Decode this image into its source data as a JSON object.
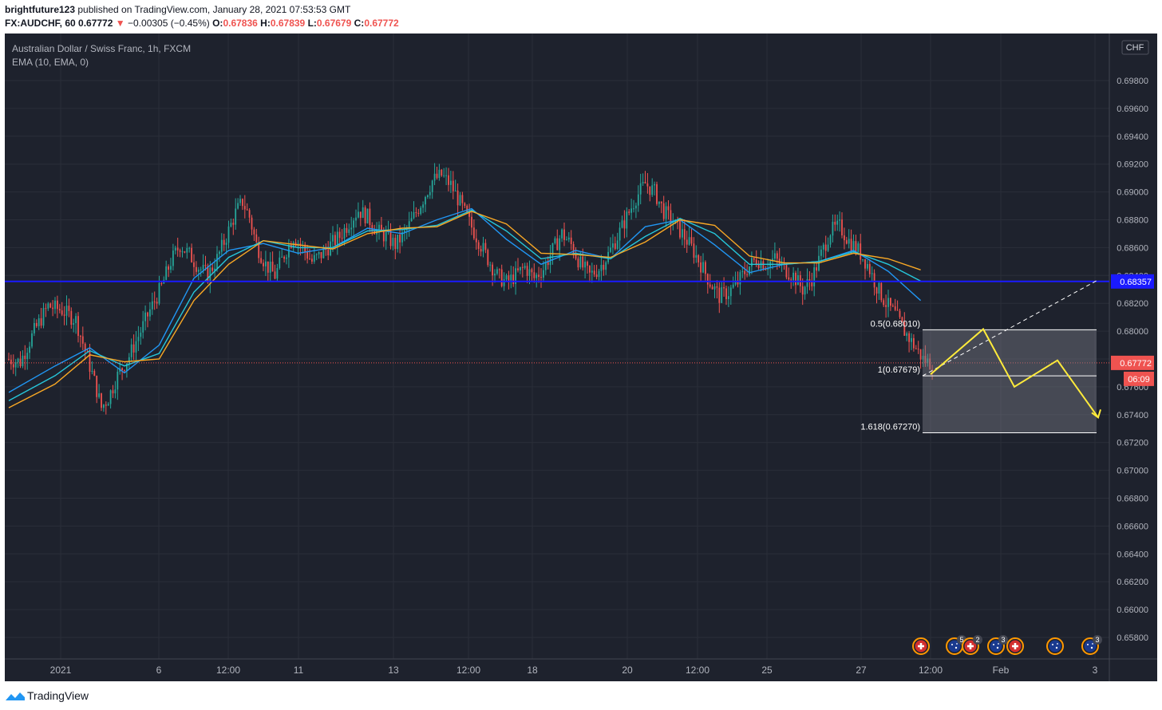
{
  "header": {
    "author": "brightfuture123",
    "published": " published on TradingView.com, January 28, 2021 07:53:53 GMT",
    "symbol": "FX:AUDCHF, 60",
    "last": "0.67772",
    "change_arrow": "▼",
    "change": "−0.00305 (−0.45%)",
    "o_label": "O:",
    "o_val": "0.67836",
    "h_label": "H:",
    "h_val": "0.67839",
    "l_label": "L:",
    "l_val": "0.67679",
    "c_label": "C:",
    "c_val": "0.67772"
  },
  "legend": {
    "title": "Australian Dollar / Swiss Franc, 1h, FXCM",
    "indicator": "EMA (10, EMA, 0)",
    "currency": "CHF"
  },
  "footer": {
    "brand": "TradingView"
  },
  "colors": {
    "background": "#1e222d",
    "up": "#26a69a",
    "down": "#ef5350",
    "ema_fast": "#2196f3",
    "ema_mid": "#26c6da",
    "ema_slow": "#f9a825",
    "support_line": "#1a1aff",
    "projection": "#ffeb3b",
    "current_price": "#ef5350"
  },
  "chart_data": {
    "type": "candlestick",
    "title": "Australian Dollar / Swiss Franc, 1h, FXCM",
    "y_ticks": [
      "0.69800",
      "0.69600",
      "0.69400",
      "0.69200",
      "0.69000",
      "0.68800",
      "0.68600",
      "0.68400",
      "0.68200",
      "0.68000",
      "0.67800",
      "0.67600",
      "0.67400",
      "0.67200",
      "0.67000",
      "0.66800",
      "0.66600",
      "0.66400",
      "0.66200",
      "0.66000",
      "0.65800"
    ],
    "ylim": [
      0.657,
      0.7
    ],
    "x_ticks": [
      "2021",
      "6",
      "12:00",
      "11",
      "13",
      "12:00",
      "18",
      "20",
      "12:00",
      "25",
      "27",
      "12:00",
      "Feb",
      "3"
    ],
    "price_path": [
      [
        0,
        0.678
      ],
      [
        6,
        0.6778
      ],
      [
        12,
        0.68
      ],
      [
        18,
        0.6818
      ],
      [
        24,
        0.6815
      ],
      [
        30,
        0.6808
      ],
      [
        34,
        0.6786
      ],
      [
        38,
        0.6764
      ],
      [
        41,
        0.6745
      ],
      [
        44,
        0.6752
      ],
      [
        48,
        0.6768
      ],
      [
        53,
        0.6782
      ],
      [
        58,
        0.68
      ],
      [
        62,
        0.6815
      ],
      [
        67,
        0.6832
      ],
      [
        71,
        0.685
      ],
      [
        75,
        0.6862
      ],
      [
        79,
        0.6855
      ],
      [
        83,
        0.6846
      ],
      [
        87,
        0.684
      ],
      [
        91,
        0.6852
      ],
      [
        95,
        0.6868
      ],
      [
        99,
        0.6885
      ],
      [
        102,
        0.6893
      ],
      [
        105,
        0.6882
      ],
      [
        108,
        0.6862
      ],
      [
        112,
        0.6848
      ],
      [
        116,
        0.684
      ],
      [
        120,
        0.6855
      ],
      [
        124,
        0.6868
      ],
      [
        128,
        0.686
      ],
      [
        132,
        0.685
      ],
      [
        136,
        0.6855
      ],
      [
        140,
        0.6862
      ],
      [
        144,
        0.6868
      ],
      [
        148,
        0.6878
      ],
      [
        152,
        0.6887
      ],
      [
        156,
        0.6882
      ],
      [
        160,
        0.6872
      ],
      [
        164,
        0.6868
      ],
      [
        168,
        0.6862
      ],
      [
        172,
        0.687
      ],
      [
        176,
        0.6882
      ],
      [
        180,
        0.6895
      ],
      [
        184,
        0.6908
      ],
      [
        188,
        0.6912
      ],
      [
        192,
        0.6905
      ],
      [
        196,
        0.6892
      ],
      [
        200,
        0.6878
      ],
      [
        204,
        0.6865
      ],
      [
        208,
        0.6852
      ],
      [
        212,
        0.684
      ],
      [
        216,
        0.6835
      ],
      [
        220,
        0.684
      ],
      [
        224,
        0.6846
      ],
      [
        228,
        0.6838
      ],
      [
        232,
        0.6845
      ],
      [
        236,
        0.6858
      ],
      [
        240,
        0.687
      ],
      [
        244,
        0.6862
      ],
      [
        248,
        0.6848
      ],
      [
        252,
        0.684
      ],
      [
        256,
        0.6845
      ],
      [
        260,
        0.6855
      ],
      [
        264,
        0.6868
      ],
      [
        268,
        0.6882
      ],
      [
        272,
        0.6896
      ],
      [
        276,
        0.6906
      ],
      [
        280,
        0.69
      ],
      [
        284,
        0.6886
      ],
      [
        288,
        0.6878
      ],
      [
        292,
        0.687
      ],
      [
        296,
        0.686
      ],
      [
        300,
        0.6848
      ],
      [
        304,
        0.6835
      ],
      [
        308,
        0.6825
      ],
      [
        312,
        0.6828
      ],
      [
        316,
        0.6835
      ],
      [
        320,
        0.6845
      ],
      [
        324,
        0.6852
      ],
      [
        328,
        0.6848
      ],
      [
        332,
        0.6852
      ],
      [
        336,
        0.6845
      ],
      [
        340,
        0.684
      ],
      [
        344,
        0.683
      ],
      [
        348,
        0.6838
      ],
      [
        352,
        0.6855
      ],
      [
        356,
        0.6872
      ],
      [
        360,
        0.6875
      ],
      [
        364,
        0.6865
      ],
      [
        368,
        0.6858
      ],
      [
        372,
        0.6848
      ],
      [
        376,
        0.6832
      ],
      [
        380,
        0.682
      ],
      [
        384,
        0.6812
      ],
      [
        388,
        0.68
      ],
      [
        392,
        0.679
      ],
      [
        396,
        0.678
      ],
      [
        399,
        0.6777
      ]
    ],
    "ema_lines": [
      {
        "name": "ema_fast",
        "pts": [
          [
            0,
            0.6756
          ],
          [
            20,
            0.6775
          ],
          [
            35,
            0.6788
          ],
          [
            50,
            0.677
          ],
          [
            65,
            0.679
          ],
          [
            80,
            0.6838
          ],
          [
            95,
            0.6858
          ],
          [
            110,
            0.6863
          ],
          [
            125,
            0.6856
          ],
          [
            140,
            0.686
          ],
          [
            155,
            0.6874
          ],
          [
            170,
            0.687
          ],
          [
            185,
            0.688
          ],
          [
            200,
            0.6888
          ],
          [
            215,
            0.6866
          ],
          [
            230,
            0.6848
          ],
          [
            245,
            0.6858
          ],
          [
            260,
            0.6852
          ],
          [
            275,
            0.6875
          ],
          [
            290,
            0.688
          ],
          [
            305,
            0.6862
          ],
          [
            320,
            0.6842
          ],
          [
            335,
            0.6848
          ],
          [
            350,
            0.685
          ],
          [
            365,
            0.6858
          ],
          [
            380,
            0.6843
          ],
          [
            394,
            0.6822
          ]
        ]
      },
      {
        "name": "ema_mid",
        "pts": [
          [
            0,
            0.675
          ],
          [
            20,
            0.6768
          ],
          [
            35,
            0.6786
          ],
          [
            50,
            0.6775
          ],
          [
            65,
            0.6784
          ],
          [
            80,
            0.6828
          ],
          [
            95,
            0.6853
          ],
          [
            110,
            0.6865
          ],
          [
            125,
            0.686
          ],
          [
            140,
            0.686
          ],
          [
            155,
            0.6872
          ],
          [
            170,
            0.6873
          ],
          [
            185,
            0.6876
          ],
          [
            200,
            0.6887
          ],
          [
            215,
            0.6872
          ],
          [
            230,
            0.6852
          ],
          [
            245,
            0.6856
          ],
          [
            260,
            0.6852
          ],
          [
            275,
            0.6868
          ],
          [
            290,
            0.6881
          ],
          [
            305,
            0.687
          ],
          [
            320,
            0.6848
          ],
          [
            335,
            0.6848
          ],
          [
            350,
            0.685
          ],
          [
            365,
            0.6857
          ],
          [
            380,
            0.6848
          ],
          [
            394,
            0.6836
          ]
        ]
      },
      {
        "name": "ema_slow",
        "pts": [
          [
            0,
            0.6745
          ],
          [
            20,
            0.6762
          ],
          [
            35,
            0.6783
          ],
          [
            50,
            0.6778
          ],
          [
            65,
            0.678
          ],
          [
            80,
            0.6822
          ],
          [
            95,
            0.6848
          ],
          [
            110,
            0.6865
          ],
          [
            125,
            0.6862
          ],
          [
            140,
            0.6859
          ],
          [
            155,
            0.687
          ],
          [
            170,
            0.6874
          ],
          [
            185,
            0.6875
          ],
          [
            200,
            0.6886
          ],
          [
            215,
            0.6877
          ],
          [
            230,
            0.6856
          ],
          [
            245,
            0.6855
          ],
          [
            260,
            0.6853
          ],
          [
            275,
            0.6864
          ],
          [
            290,
            0.688
          ],
          [
            305,
            0.6876
          ],
          [
            320,
            0.6854
          ],
          [
            335,
            0.6849
          ],
          [
            350,
            0.6849
          ],
          [
            365,
            0.6856
          ],
          [
            380,
            0.6852
          ],
          [
            394,
            0.6844
          ]
        ]
      }
    ],
    "support_level": "0.68357",
    "current_price": "0.67772",
    "countdown": "06:09",
    "fib_levels": [
      {
        "label": "0.5(0.68010)",
        "value": 0.6801
      },
      {
        "label": "1(0.67679)",
        "value": 0.67679
      },
      {
        "label": "1.618(0.67270)",
        "value": 0.6727
      }
    ],
    "projection_path": [
      [
        0.6769,
        0
      ],
      [
        0.68015,
        0.22
      ],
      [
        0.676,
        0.35
      ],
      [
        0.6779,
        0.53
      ],
      [
        0.6738,
        0.7
      ]
    ],
    "event_badges": [
      {
        "kind": "swiss",
        "count": ""
      },
      {
        "kind": "aus",
        "count": "5"
      },
      {
        "kind": "swiss",
        "count": "2"
      },
      {
        "kind": "aus",
        "count": "3"
      },
      {
        "kind": "swiss",
        "count": ""
      },
      {
        "kind": "aus",
        "count": ""
      },
      {
        "kind": "aus",
        "count": "3"
      }
    ]
  }
}
